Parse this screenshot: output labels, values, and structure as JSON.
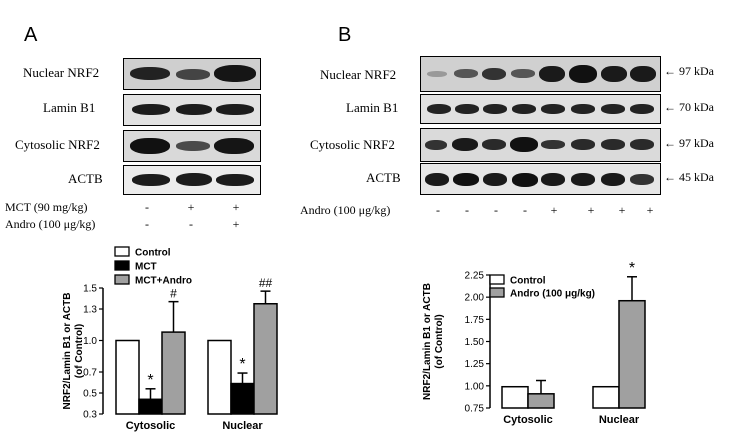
{
  "panel_a": {
    "letter": "A",
    "blot_rows": [
      "Nuclear NRF2",
      "Lamin B1",
      "Cytosolic NRF2",
      "ACTB"
    ],
    "conditions": [
      {
        "label": "MCT (90 mg/kg)",
        "signs": [
          "-",
          "+",
          "+"
        ]
      },
      {
        "label": "Andro (100 μg/kg)",
        "signs": [
          "-",
          "-",
          "+"
        ]
      }
    ]
  },
  "panel_b": {
    "letter": "B",
    "blot_rows": [
      "Nuclear NRF2",
      "Lamin B1",
      "Cytosolic NRF2",
      "ACTB"
    ],
    "kda": [
      "97 kDa",
      "70 kDa",
      "97 kDa",
      "45 kDa"
    ],
    "conditions": [
      {
        "label": "Andro (100 μg/kg)",
        "signs": [
          "-",
          "-",
          "-",
          "-",
          "+",
          "+",
          "+",
          "+"
        ]
      }
    ]
  },
  "chart_data": [
    {
      "type": "bar",
      "ylabel": "NRF2/Lamin B1 or ACTB\n(of Control)",
      "categories": [
        "Cytosolic",
        "Nuclear"
      ],
      "ylim": [
        0.3,
        1.5
      ],
      "yticks": [
        "0.3",
        "0.5",
        "0.7",
        "1.0",
        "1.3",
        "1.5"
      ],
      "legend_position": "top-left",
      "series": [
        {
          "name": "Control",
          "values": [
            1.0,
            1.0
          ],
          "errors": [
            0,
            0
          ],
          "color": "#ffffff",
          "marks": [
            "",
            ""
          ]
        },
        {
          "name": "MCT",
          "values": [
            0.44,
            0.59
          ],
          "errors": [
            0.1,
            0.1
          ],
          "color": "#000000",
          "marks": [
            "*",
            "*"
          ]
        },
        {
          "name": "MCT+Andro",
          "values": [
            1.08,
            1.35
          ],
          "errors": [
            0.29,
            0.12
          ],
          "color": "#a0a0a0",
          "marks": [
            "#",
            "##"
          ]
        }
      ]
    },
    {
      "type": "bar",
      "ylabel": "NRF2/Lamin B1 or ACTB\n(of Control)",
      "categories": [
        "Cytosolic",
        "Nuclear"
      ],
      "ylim": [
        0.75,
        2.25
      ],
      "yticks": [
        "0.75",
        "1.00",
        "1.25",
        "1.50",
        "1.75",
        "2.00",
        "2.25"
      ],
      "legend_position": "top-left",
      "series": [
        {
          "name": "Control",
          "values": [
            0.99,
            0.99
          ],
          "errors": [
            0,
            0
          ],
          "color": "#ffffff",
          "marks": [
            "",
            ""
          ]
        },
        {
          "name": "Andro (100 μg/kg)",
          "values": [
            0.91,
            1.96
          ],
          "errors": [
            0.15,
            0.27
          ],
          "color": "#a0a0a0",
          "marks": [
            "",
            "*"
          ]
        }
      ]
    }
  ]
}
